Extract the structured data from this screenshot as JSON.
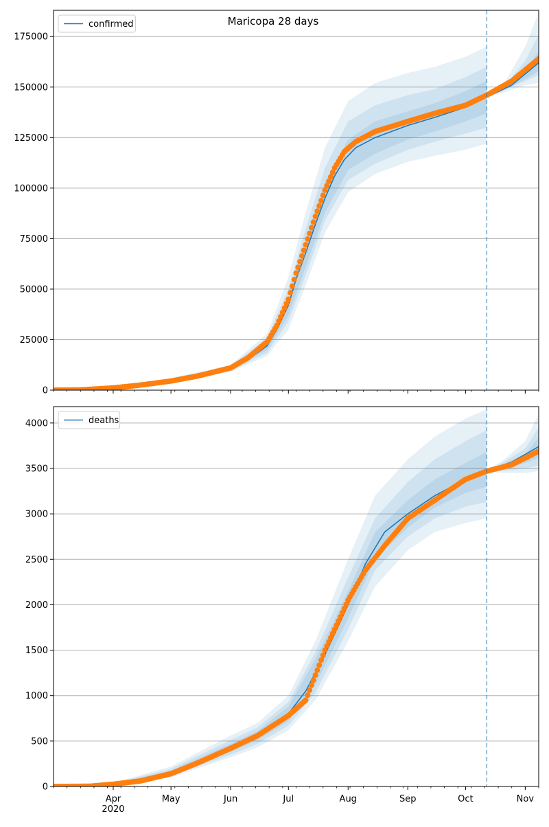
{
  "title": "Maricopa 28 days",
  "colors": {
    "fit": "#1f77b4",
    "observed": "#ff7f0e",
    "band": "#1f77b4",
    "grid": "#b0b0b0"
  },
  "x_axis": {
    "year_label": "2020",
    "month_ticks": [
      {
        "label": "Apr",
        "date": "2020-04-01"
      },
      {
        "label": "May",
        "date": "2020-05-01"
      },
      {
        "label": "Jun",
        "date": "2020-06-01"
      },
      {
        "label": "Jul",
        "date": "2020-07-01"
      },
      {
        "label": "Aug",
        "date": "2020-08-01"
      },
      {
        "label": "Sep",
        "date": "2020-09-01"
      },
      {
        "label": "Oct",
        "date": "2020-10-01"
      },
      {
        "label": "Nov",
        "date": "2020-11-01"
      }
    ],
    "xlim": [
      "2020-03-01",
      "2020-11-08"
    ]
  },
  "chart_data": [
    {
      "type": "line",
      "title": "Maricopa 28 days",
      "legend": {
        "entries": [
          "confirmed"
        ],
        "placement": "top-left"
      },
      "forecast_start": "2020-10-12",
      "ylim": [
        0,
        188000
      ],
      "yticks": [
        0,
        25000,
        50000,
        75000,
        100000,
        125000,
        150000,
        175000
      ],
      "grid": "horizontal",
      "fit": [
        [
          "2020-03-01",
          0
        ],
        [
          "2020-03-15",
          200
        ],
        [
          "2020-04-01",
          1400
        ],
        [
          "2020-04-15",
          3000
        ],
        [
          "2020-05-01",
          5200
        ],
        [
          "2020-05-15",
          7500
        ],
        [
          "2020-06-01",
          10500
        ],
        [
          "2020-06-10",
          15000
        ],
        [
          "2020-06-20",
          22000
        ],
        [
          "2020-06-25",
          30000
        ],
        [
          "2020-07-01",
          42000
        ],
        [
          "2020-07-05",
          55000
        ],
        [
          "2020-07-10",
          68000
        ],
        [
          "2020-07-15",
          82000
        ],
        [
          "2020-07-20",
          95000
        ],
        [
          "2020-07-25",
          106000
        ],
        [
          "2020-07-30",
          114000
        ],
        [
          "2020-08-05",
          120000
        ],
        [
          "2020-08-15",
          125000
        ],
        [
          "2020-09-01",
          131000
        ],
        [
          "2020-09-15",
          135000
        ],
        [
          "2020-10-01",
          140000
        ],
        [
          "2020-10-12",
          145000
        ],
        [
          "2020-10-25",
          151000
        ],
        [
          "2020-11-08",
          162000
        ]
      ],
      "bands": [
        {
          "level": "outer",
          "points": [
            [
              "2020-03-01",
              0,
              0
            ],
            [
              "2020-04-01",
              1000,
              1800
            ],
            [
              "2020-05-01",
              4500,
              6000
            ],
            [
              "2020-06-01",
              9000,
              12500
            ],
            [
              "2020-06-20",
              17000,
              28000
            ],
            [
              "2020-07-01",
              30000,
              56000
            ],
            [
              "2020-07-10",
              52000,
              88000
            ],
            [
              "2020-07-20",
              78000,
              120000
            ],
            [
              "2020-08-01",
              98000,
              143000
            ],
            [
              "2020-08-15",
              107000,
              152000
            ],
            [
              "2020-09-01",
              113000,
              157000
            ],
            [
              "2020-09-15",
              116000,
              160000
            ],
            [
              "2020-10-01",
              119000,
              165000
            ],
            [
              "2020-10-12",
              122000,
              170000
            ],
            [
              "2020-10-12",
              145000,
              145000
            ],
            [
              "2020-10-20",
              147000,
              150000
            ],
            [
              "2020-11-01",
              151000,
              170000
            ],
            [
              "2020-11-08",
              152000,
              187000
            ]
          ]
        },
        {
          "level": "middle",
          "points": [
            [
              "2020-03-01",
              0,
              0
            ],
            [
              "2020-04-01",
              1100,
              1700
            ],
            [
              "2020-05-01",
              4700,
              5800
            ],
            [
              "2020-06-01",
              9500,
              12000
            ],
            [
              "2020-06-20",
              18500,
              26000
            ],
            [
              "2020-07-01",
              34000,
              50000
            ],
            [
              "2020-07-10",
              57000,
              80000
            ],
            [
              "2020-07-20",
              84000,
              110000
            ],
            [
              "2020-08-01",
              104000,
              133000
            ],
            [
              "2020-08-15",
              112000,
              141000
            ],
            [
              "2020-09-01",
              119000,
              146000
            ],
            [
              "2020-09-15",
              123000,
              149000
            ],
            [
              "2020-10-01",
              127000,
              155000
            ],
            [
              "2020-10-12",
              130000,
              160000
            ],
            [
              "2020-10-12",
              145000,
              145000
            ],
            [
              "2020-10-20",
              148000,
              149000
            ],
            [
              "2020-11-01",
              153000,
              163000
            ],
            [
              "2020-11-08",
              156000,
              176000
            ]
          ]
        },
        {
          "level": "inner",
          "points": [
            [
              "2020-03-01",
              0,
              0
            ],
            [
              "2020-04-01",
              1200,
              1600
            ],
            [
              "2020-05-01",
              4900,
              5600
            ],
            [
              "2020-06-01",
              10000,
              11300
            ],
            [
              "2020-06-20",
              20000,
              24500
            ],
            [
              "2020-07-01",
              37000,
              46000
            ],
            [
              "2020-07-10",
              61000,
              75000
            ],
            [
              "2020-07-20",
              88000,
              103000
            ],
            [
              "2020-08-01",
              109000,
              124000
            ],
            [
              "2020-08-15",
              117000,
              133000
            ],
            [
              "2020-09-01",
              124000,
              138000
            ],
            [
              "2020-09-15",
              128000,
              142000
            ],
            [
              "2020-10-01",
              133000,
              148000
            ],
            [
              "2020-10-12",
              137000,
              153000
            ],
            [
              "2020-10-12",
              145000,
              145000
            ],
            [
              "2020-10-20",
              148000,
              149000
            ],
            [
              "2020-11-01",
              154000,
              158000
            ],
            [
              "2020-11-08",
              158000,
              168000
            ]
          ]
        }
      ],
      "observed": [
        [
          "2020-03-01",
          0
        ],
        [
          "2020-03-15",
          150
        ],
        [
          "2020-04-01",
          1100
        ],
        [
          "2020-04-15",
          2500
        ],
        [
          "2020-05-01",
          4500
        ],
        [
          "2020-05-15",
          7000
        ],
        [
          "2020-06-01",
          11000
        ],
        [
          "2020-06-10",
          16000
        ],
        [
          "2020-06-20",
          24000
        ],
        [
          "2020-06-25",
          32000
        ],
        [
          "2020-07-01",
          45000
        ],
        [
          "2020-07-05",
          58000
        ],
        [
          "2020-07-10",
          72000
        ],
        [
          "2020-07-15",
          86000
        ],
        [
          "2020-07-20",
          99000
        ],
        [
          "2020-07-25",
          110000
        ],
        [
          "2020-07-30",
          118000
        ],
        [
          "2020-08-05",
          123000
        ],
        [
          "2020-08-15",
          128000
        ],
        [
          "2020-09-01",
          133000
        ],
        [
          "2020-09-15",
          137000
        ],
        [
          "2020-10-01",
          141000
        ],
        [
          "2020-10-12",
          146000
        ],
        [
          "2020-10-25",
          153000
        ],
        [
          "2020-11-08",
          164000
        ]
      ]
    },
    {
      "type": "line",
      "title": "",
      "legend": {
        "entries": [
          "deaths"
        ],
        "placement": "top-left"
      },
      "forecast_start": "2020-10-12",
      "ylim": [
        0,
        4180
      ],
      "yticks": [
        0,
        500,
        1000,
        1500,
        2000,
        2500,
        3000,
        3500,
        4000
      ],
      "grid": "horizontal",
      "fit": [
        [
          "2020-03-01",
          0
        ],
        [
          "2020-03-20",
          5
        ],
        [
          "2020-04-01",
          25
        ],
        [
          "2020-04-15",
          70
        ],
        [
          "2020-05-01",
          150
        ],
        [
          "2020-05-15",
          270
        ],
        [
          "2020-06-01",
          420
        ],
        [
          "2020-06-15",
          560
        ],
        [
          "2020-07-01",
          800
        ],
        [
          "2020-07-10",
          1050
        ],
        [
          "2020-07-20",
          1450
        ],
        [
          "2020-08-01",
          2000
        ],
        [
          "2020-08-10",
          2450
        ],
        [
          "2020-08-20",
          2800
        ],
        [
          "2020-09-01",
          3000
        ],
        [
          "2020-09-15",
          3200
        ],
        [
          "2020-10-01",
          3380
        ],
        [
          "2020-10-12",
          3480
        ],
        [
          "2020-10-25",
          3570
        ],
        [
          "2020-11-08",
          3740
        ]
      ],
      "bands": [
        {
          "level": "outer",
          "points": [
            [
              "2020-03-01",
              0,
              0
            ],
            [
              "2020-04-01",
              10,
              40
            ],
            [
              "2020-05-01",
              100,
              220
            ],
            [
              "2020-06-01",
              320,
              560
            ],
            [
              "2020-06-15",
              430,
              700
            ],
            [
              "2020-07-01",
              620,
              1000
            ],
            [
              "2020-07-15",
              950,
              1600
            ],
            [
              "2020-08-01",
              1600,
              2500
            ],
            [
              "2020-08-15",
              2200,
              3200
            ],
            [
              "2020-09-01",
              2600,
              3600
            ],
            [
              "2020-09-15",
              2800,
              3850
            ],
            [
              "2020-10-01",
              2900,
              4050
            ],
            [
              "2020-10-12",
              2950,
              4150
            ],
            [
              "2020-10-12",
              3480,
              3480
            ],
            [
              "2020-10-20",
              3450,
              3580
            ],
            [
              "2020-11-01",
              3450,
              3800
            ],
            [
              "2020-11-08",
              3470,
              4100
            ]
          ]
        },
        {
          "level": "middle",
          "points": [
            [
              "2020-03-01",
              0,
              0
            ],
            [
              "2020-04-01",
              15,
              35
            ],
            [
              "2020-05-01",
              115,
              195
            ],
            [
              "2020-06-01",
              350,
              510
            ],
            [
              "2020-06-15",
              470,
              650
            ],
            [
              "2020-07-01",
              670,
              930
            ],
            [
              "2020-07-15",
              1030,
              1480
            ],
            [
              "2020-08-01",
              1730,
              2300
            ],
            [
              "2020-08-15",
              2380,
              2950
            ],
            [
              "2020-09-01",
              2750,
              3350
            ],
            [
              "2020-09-15",
              2950,
              3600
            ],
            [
              "2020-10-01",
              3080,
              3800
            ],
            [
              "2020-10-12",
              3130,
              3920
            ],
            [
              "2020-10-12",
              3480,
              3480
            ],
            [
              "2020-10-20",
              3470,
              3560
            ],
            [
              "2020-11-01",
              3500,
              3720
            ],
            [
              "2020-11-08",
              3530,
              3950
            ]
          ]
        },
        {
          "level": "inner",
          "points": [
            [
              "2020-03-01",
              0,
              0
            ],
            [
              "2020-04-01",
              20,
              30
            ],
            [
              "2020-05-01",
              130,
              175
            ],
            [
              "2020-06-01",
              380,
              470
            ],
            [
              "2020-06-15",
              510,
              610
            ],
            [
              "2020-07-01",
              720,
              880
            ],
            [
              "2020-07-15",
              1120,
              1400
            ],
            [
              "2020-08-01",
              1850,
              2150
            ],
            [
              "2020-08-15",
              2500,
              2800
            ],
            [
              "2020-09-01",
              2850,
              3150
            ],
            [
              "2020-09-15",
              3070,
              3380
            ],
            [
              "2020-10-01",
              3230,
              3560
            ],
            [
              "2020-10-12",
              3300,
              3680
            ],
            [
              "2020-10-12",
              3480,
              3480
            ],
            [
              "2020-10-20",
              3490,
              3540
            ],
            [
              "2020-11-01",
              3560,
              3660
            ],
            [
              "2020-11-08",
              3620,
              3840
            ]
          ]
        }
      ],
      "observed": [
        [
          "2020-03-01",
          0
        ],
        [
          "2020-03-20",
          3
        ],
        [
          "2020-04-01",
          25
        ],
        [
          "2020-04-15",
          60
        ],
        [
          "2020-05-01",
          140
        ],
        [
          "2020-05-15",
          260
        ],
        [
          "2020-06-01",
          420
        ],
        [
          "2020-06-15",
          560
        ],
        [
          "2020-07-01",
          780
        ],
        [
          "2020-07-10",
          950
        ],
        [
          "2020-07-20",
          1500
        ],
        [
          "2020-08-01",
          2050
        ],
        [
          "2020-08-10",
          2380
        ],
        [
          "2020-08-20",
          2650
        ],
        [
          "2020-09-01",
          2950
        ],
        [
          "2020-09-15",
          3150
        ],
        [
          "2020-10-01",
          3380
        ],
        [
          "2020-10-12",
          3470
        ],
        [
          "2020-10-25",
          3540
        ],
        [
          "2020-11-08",
          3690
        ]
      ]
    }
  ]
}
